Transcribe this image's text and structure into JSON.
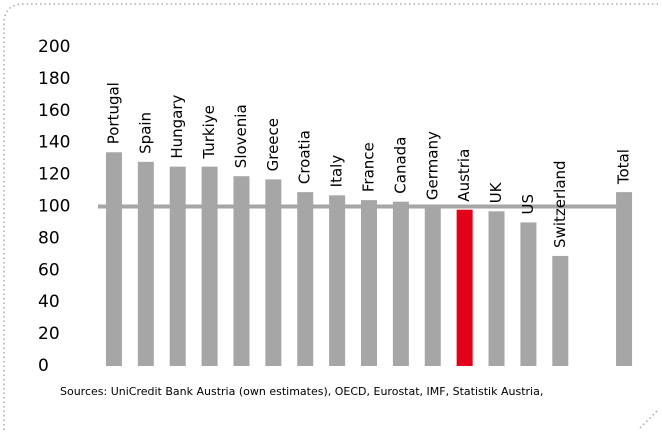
{
  "chart_data": {
    "type": "bar",
    "categories": [
      "Portugal",
      "Spain",
      "Hungary",
      "Turkiye",
      "Slovenia",
      "Greece",
      "Croatia",
      "Italy",
      "France",
      "Canada",
      "Germany",
      "Austria",
      "UK",
      "US",
      "Switzerland",
      null,
      "Total"
    ],
    "values": [
      134,
      128,
      125,
      125,
      119,
      117,
      109,
      107,
      104,
      103,
      99,
      98,
      97,
      90,
      69,
      null,
      109
    ],
    "colors": [
      "#a6a6a6",
      "#a6a6a6",
      "#a6a6a6",
      "#a6a6a6",
      "#a6a6a6",
      "#a6a6a6",
      "#a6a6a6",
      "#a6a6a6",
      "#a6a6a6",
      "#a6a6a6",
      "#a6a6a6",
      "#e2001a",
      "#a6a6a6",
      "#a6a6a6",
      "#a6a6a6",
      null,
      "#a6a6a6"
    ],
    "reference_line": 100,
    "reference_color": "#a6a6a6",
    "ylim": [
      0,
      200
    ],
    "yticks": [
      0,
      20,
      40,
      60,
      80,
      100,
      120,
      140,
      160,
      180,
      200
    ],
    "source": "Sources: UniCredit Bank Austria (own estimates), OECD, Eurostat, IMF, Statistik Austria,"
  }
}
